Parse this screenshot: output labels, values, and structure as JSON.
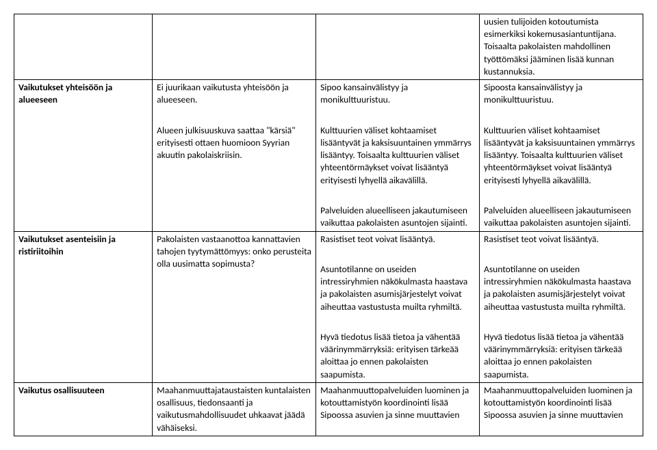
{
  "row0": {
    "c4": "uusien tulijoiden kotoutumista esimerkiksi kokemusasiantuntijana. Toisaalta pakolaisten mahdollinen työttömäksi jääminen lisää kunnan kustannuksia."
  },
  "row1": {
    "label": "Vaikutukset yhteisöön ja alueeseen",
    "c2_p1": "Ei juurikaan vaikutusta yhteisöön ja alueeseen.",
    "c2_p2": "Alueen julkisuuskuva saattaa \"kärsiä\" erityisesti ottaen huomioon Syyrian akuutin pakolaiskriisin.",
    "c3_p1": "Sipoo kansainvälistyy ja monikulttuuristuu.",
    "c3_p2": "Kulttuurien väliset kohtaamiset lisääntyvät ja kaksisuuntainen ymmärrys lisääntyy. Toisaalta kulttuurien väliset yhteentörmäykset voivat lisääntyä erityisesti lyhyellä aikavälillä.",
    "c3_p3": "Palveluiden alueelliseen jakautumiseen vaikuttaa pakolaisten asuntojen sijainti.",
    "c4_p1": "Sipoosta kansainvälistyy ja monikulttuuristuu.",
    "c4_p2": "Kulttuurien väliset kohtaamiset lisääntyvät ja kaksisuuntainen ymmärrys lisääntyy. Toisaalta kulttuurien väliset yhteentörmäykset voivat lisääntyä erityisesti lyhyellä aikavälillä.",
    "c4_p3": "Palveluiden alueelliseen jakautumiseen vaikuttaa pakolaisten asuntojen sijainti."
  },
  "row2": {
    "label": "Vaikutukset asenteisiin ja ristiriitoihin",
    "c2": "Pakolaisten vastaanottoa kannattavien tahojen tyytymättömyys: onko perusteita olla uusimatta sopimusta?",
    "c3_p1": "Rasistiset teot voivat lisääntyä.",
    "c3_p2": "Asuntotilanne on useiden intressiryhmien näkökulmasta haastava ja pakolaisten asumisjärjestelyt voivat aiheuttaa vastustusta muilta ryhmiltä.",
    "c3_p3": "Hyvä tiedotus lisää tietoa ja vähentää väärinymmärryksiä: erityisen tärkeää aloittaa jo ennen pakolaisten saapumista.",
    "c4_p1": "Rasistiset teot voivat lisääntyä.",
    "c4_p2": "Asuntotilanne on useiden intressiryhmien näkökulmasta haastava ja pakolaisten asumisjärjestelyt voivat aiheuttaa vastustusta muilta ryhmiltä.",
    "c4_p3": "Hyvä tiedotus lisää tietoa ja vähentää väärinymmärryksiä: erityisen tärkeää aloittaa jo ennen pakolaisten saapumista."
  },
  "row3": {
    "label": "Vaikutus osallisuuteen",
    "c2": "Maahanmuuttajataustaisten kuntalaisten osallisuus, tiedonsaanti ja vaikutusmahdollisuudet uhkaavat jäädä vähäiseksi.",
    "c3": "Maahanmuuttopalveluiden luominen ja kotouttamistyön koordinointi lisää Sipoossa asuvien ja sinne muuttavien",
    "c4": "Maahanmuuttopalveluiden luominen ja kotouttamistyön koordinointi lisää Sipoossa asuvien ja sinne muuttavien"
  }
}
